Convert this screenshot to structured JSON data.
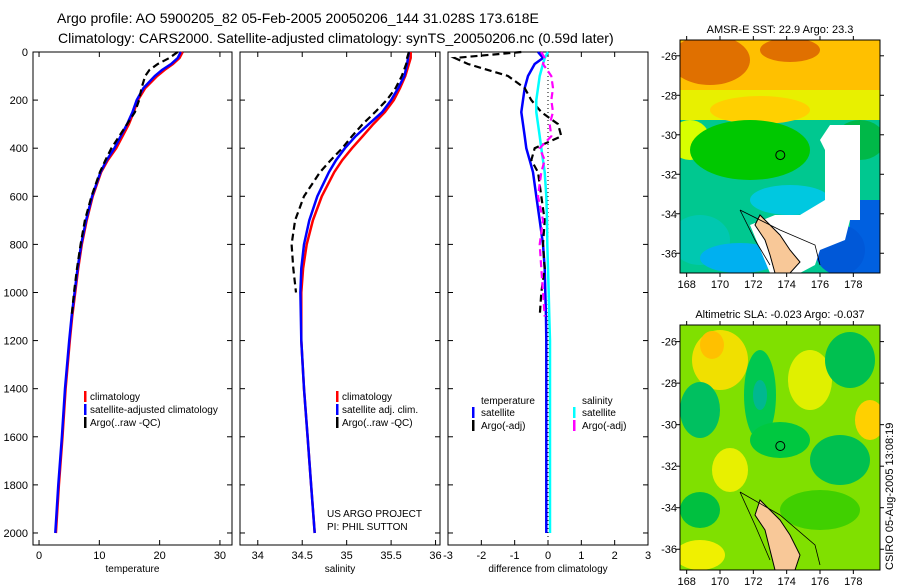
{
  "title": {
    "line1": "Argo profile: AO 5900205_82 05-Feb-2005 20050206_144 31.028S 173.618E",
    "line2": "Climatology: CARS2000. Satellite-adjusted climatology: synTS_20050206.nc (0.59d later)"
  },
  "side_label": "CSIRO 05-Aug-2005 13:08:19",
  "colors": {
    "climatology": "#ff0000",
    "satellite": "#0000ff",
    "argo": "#000000",
    "sal_satellite": "#00ffff",
    "sal_argo": "#ff00ff"
  },
  "chart_data": [
    {
      "type": "line",
      "xlabel": "temperature",
      "ylabel": "",
      "xlim": [
        -1,
        32
      ],
      "ylim": [
        2050,
        0
      ],
      "xticks": [
        "0",
        "10",
        "20",
        "30"
      ],
      "xtick_values": [
        0,
        10,
        20,
        30
      ],
      "yticks": [
        "0",
        "200",
        "400",
        "600",
        "800",
        "1000",
        "1200",
        "1400",
        "1600",
        "1800",
        "2000"
      ],
      "ytick_values": [
        0,
        200,
        400,
        600,
        800,
        1000,
        1200,
        1400,
        1600,
        1800,
        2000
      ],
      "depth": [
        0,
        25,
        50,
        75,
        100,
        150,
        200,
        250,
        300,
        400,
        450,
        500,
        600,
        700,
        800,
        900,
        1000,
        1100,
        1200,
        1400,
        1600,
        1800,
        2000
      ],
      "series": [
        {
          "name": "climatology",
          "key": "climatology",
          "style": "solid",
          "values": [
            23.8,
            23.3,
            22.2,
            20.8,
            19.6,
            17.6,
            16.4,
            15.7,
            14.9,
            12.8,
            11.4,
            10.3,
            8.9,
            7.9,
            7.1,
            6.5,
            6.0,
            5.5,
            5.1,
            4.4,
            3.9,
            3.3,
            2.8
          ]
        },
        {
          "name": "satellite-adjusted climatology",
          "key": "satellite",
          "style": "solid",
          "values": [
            23.5,
            23.0,
            21.9,
            20.4,
            19.2,
            17.3,
            16.2,
            15.5,
            14.6,
            12.5,
            11.2,
            10.2,
            8.8,
            7.8,
            7.0,
            6.4,
            5.9,
            5.4,
            5.0,
            4.3,
            3.8,
            3.2,
            2.7
          ]
        },
        {
          "name": "Argo(..raw -QC)",
          "key": "argo",
          "style": "dashed",
          "values": [
            23.0,
            21.6,
            19.7,
            18.3,
            17.6,
            17.0,
            16.6,
            15.9,
            14.6,
            12.0,
            11.0,
            10.1,
            8.7,
            7.6,
            6.9,
            6.3,
            5.8,
            5.4,
            null,
            null,
            null,
            null,
            null
          ]
        }
      ],
      "legend": [
        "climatology",
        "satellite-adjusted climatology",
        "Argo(..raw -QC)"
      ],
      "legend_placement": "lower-right"
    },
    {
      "type": "line",
      "xlabel": "salinity",
      "xlim": [
        33.8,
        36.05
      ],
      "ylim": [
        2050,
        0
      ],
      "xticks": [
        "34",
        "34.5",
        "35",
        "35.5",
        "36"
      ],
      "xtick_values": [
        34,
        34.5,
        35,
        35.5,
        36
      ],
      "depth": [
        0,
        25,
        50,
        100,
        150,
        200,
        250,
        300,
        350,
        400,
        450,
        500,
        600,
        700,
        800,
        900,
        1000,
        1200,
        1400,
        1600,
        1800,
        2000
      ],
      "series": [
        {
          "name": "climatology",
          "key": "climatology",
          "style": "solid",
          "values": [
            35.72,
            35.72,
            35.7,
            35.66,
            35.6,
            35.53,
            35.43,
            35.3,
            35.18,
            35.06,
            34.95,
            34.86,
            34.72,
            34.62,
            34.55,
            34.51,
            34.49,
            34.49,
            34.52,
            34.56,
            34.6,
            34.64
          ]
        },
        {
          "name": "satellite adj. clim.",
          "key": "satellite",
          "style": "solid",
          "values": [
            35.7,
            35.69,
            35.68,
            35.65,
            35.58,
            35.5,
            35.4,
            35.25,
            35.1,
            34.98,
            34.88,
            34.8,
            34.67,
            34.58,
            34.52,
            34.49,
            34.48,
            34.49,
            34.52,
            34.56,
            34.6,
            34.64
          ]
        },
        {
          "name": "Argo(..raw -QC)",
          "key": "argo",
          "style": "dashed",
          "values": [
            35.7,
            35.68,
            35.67,
            35.62,
            35.55,
            35.45,
            35.32,
            35.18,
            35.06,
            34.95,
            34.82,
            34.7,
            34.52,
            34.42,
            34.38,
            34.4,
            34.43,
            null,
            null,
            null,
            null,
            null
          ]
        }
      ],
      "legend": [
        "climatology",
        "satellite adj. clim.",
        "Argo(..raw -QC)"
      ],
      "legend_placement": "lower-right",
      "annotation": [
        "US ARGO PROJECT",
        "PI: PHIL SUTTON"
      ]
    },
    {
      "type": "line",
      "xlabel": "difference from climatology",
      "xlim": [
        -3,
        3
      ],
      "ylim": [
        2050,
        0
      ],
      "xticks": [
        "-3",
        "-2",
        "-1",
        "0",
        "1",
        "2",
        "3"
      ],
      "xtick_values": [
        -3,
        -2,
        -1,
        0,
        1,
        2,
        3
      ],
      "depth": [
        0,
        25,
        50,
        100,
        150,
        200,
        250,
        300,
        350,
        400,
        450,
        500,
        600,
        700,
        800,
        900,
        1000,
        1100,
        1200,
        1400,
        1600,
        1800,
        2000
      ],
      "series": [
        {
          "name": "temperature satellite",
          "key": "satellite",
          "style": "solid",
          "values": [
            -0.3,
            -0.15,
            -0.4,
            -0.6,
            -0.7,
            -0.75,
            -0.8,
            -0.75,
            -0.7,
            -0.65,
            -0.55,
            -0.45,
            -0.35,
            -0.25,
            -0.15,
            -0.1,
            -0.08,
            -0.06,
            -0.05,
            -0.05,
            -0.05,
            -0.05,
            -0.05
          ]
        },
        {
          "name": "temperature Argo(-adj)",
          "key": "argo",
          "style": "dashed",
          "values": [
            -0.8,
            -2.8,
            -2.4,
            -1.2,
            -0.7,
            -0.5,
            -0.2,
            0.3,
            0.4,
            -0.4,
            -0.5,
            -0.3,
            -0.2,
            -0.1,
            -0.15,
            -0.1,
            -0.2,
            -0.25,
            null,
            null,
            null,
            null,
            null
          ]
        },
        {
          "name": "salinity satellite",
          "key": "sal_satellite",
          "style": "solid",
          "values": [
            0.0,
            -0.1,
            -0.15,
            -0.25,
            -0.3,
            -0.35,
            -0.35,
            -0.3,
            -0.25,
            -0.2,
            -0.15,
            -0.1,
            -0.05,
            -0.03,
            -0.02,
            0.0,
            0.02,
            0.04,
            0.06,
            0.06,
            0.06,
            0.06,
            0.06
          ]
        },
        {
          "name": "salinity Argo(-adj)",
          "key": "sal_argo",
          "style": "dashed",
          "values": [
            -0.2,
            -0.1,
            -0.15,
            0.1,
            0.15,
            0.1,
            0.15,
            0.05,
            0.1,
            -0.25,
            -0.1,
            -0.2,
            -0.3,
            -0.15,
            -0.25,
            -0.2,
            -0.15,
            -0.1,
            null,
            null,
            null,
            null,
            null
          ]
        }
      ],
      "legend_groups": [
        {
          "header": "temperature",
          "items": [
            "satellite",
            "Argo(-adj)"
          ]
        },
        {
          "header": "salinity",
          "items": [
            "satellite",
            "Argo(-adj)"
          ]
        }
      ],
      "legend_placement": "lower-center"
    },
    {
      "type": "heatmap",
      "title": "AMSR-E SST: 22.9 Argo: 23.3",
      "xticks": [
        "168",
        "170",
        "172",
        "174",
        "176",
        "178"
      ],
      "yticks": [
        "-26",
        "-28",
        "-30",
        "-32",
        "-34",
        "-36"
      ],
      "xlim": [
        167.6,
        179.6
      ],
      "ylim": [
        -37,
        -25.2
      ],
      "marker": {
        "lon": 173.618,
        "lat": -31.028
      }
    },
    {
      "type": "heatmap",
      "title": "Altimetric SLA: -0.023 Argo: -0.037",
      "xticks": [
        "168",
        "170",
        "172",
        "174",
        "176",
        "178"
      ],
      "yticks": [
        "-26",
        "-28",
        "-30",
        "-32",
        "-34",
        "-36"
      ],
      "xlim": [
        167.6,
        179.6
      ],
      "ylim": [
        -37,
        -25.2
      ],
      "marker": {
        "lon": 173.618,
        "lat": -31.028
      }
    }
  ]
}
